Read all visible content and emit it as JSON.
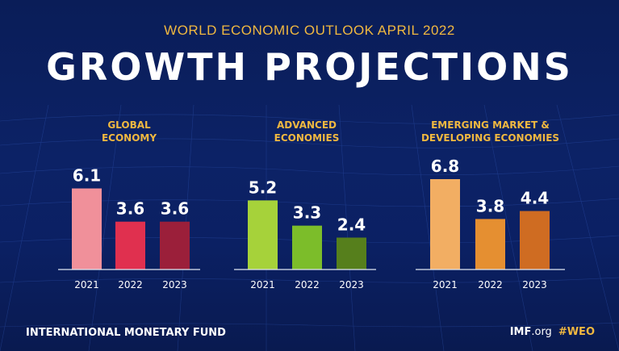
{
  "header": {
    "subtitle": "WORLD ECONOMIC OUTLOOK APRIL 2022",
    "title": "GROWTH PROJECTIONS"
  },
  "footer": {
    "left": "INTERNATIONAL MONETARY FUND",
    "imf": "IMF",
    "org": ".org",
    "hashtag": "#WEO"
  },
  "colors": {
    "background": "#0b1f5c",
    "accent": "#f0b840",
    "baseline": "#dfe6f2"
  },
  "chart_data": [
    {
      "type": "bar",
      "title_lines": [
        "GLOBAL",
        "ECONOMY"
      ],
      "categories": [
        "2021",
        "2022",
        "2023"
      ],
      "values": [
        6.1,
        3.6,
        3.6
      ],
      "labels": [
        "6.1",
        "3.6",
        "3.6"
      ],
      "colors": [
        "#f0909a",
        "#e0304f",
        "#9b1f3a"
      ],
      "ylim": [
        0,
        6.8
      ]
    },
    {
      "type": "bar",
      "title_lines": [
        "ADVANCED",
        "ECONOMIES"
      ],
      "categories": [
        "2021",
        "2022",
        "2023"
      ],
      "values": [
        5.2,
        3.3,
        2.4
      ],
      "labels": [
        "5.2",
        "3.3",
        "2.4"
      ],
      "colors": [
        "#a6d23a",
        "#7cbd2a",
        "#567f1c"
      ],
      "ylim": [
        0,
        6.8
      ]
    },
    {
      "type": "bar",
      "title_lines": [
        "EMERGING MARKET &",
        "DEVELOPING ECONOMIES"
      ],
      "categories": [
        "2021",
        "2022",
        "2023"
      ],
      "values": [
        6.8,
        3.8,
        4.4
      ],
      "labels": [
        "6.8",
        "3.8",
        "4.4"
      ],
      "colors": [
        "#f2ae63",
        "#e58f31",
        "#cf6c22"
      ],
      "ylim": [
        0,
        6.8
      ]
    }
  ]
}
